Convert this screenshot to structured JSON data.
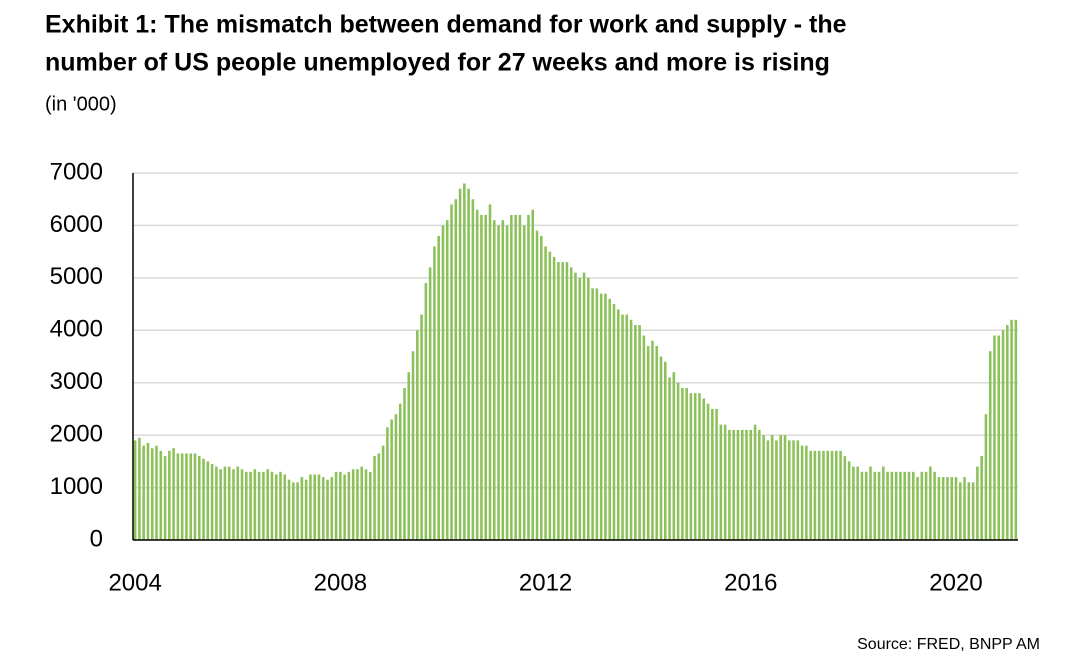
{
  "chart_data": {
    "type": "bar",
    "title": [
      "Exhibit 1: The mismatch between demand for work and supply - the",
      "number of US people unemployed for 27 weeks and more is rising"
    ],
    "subtitle": "(in '000)",
    "source": "Source: FRED,  BNPP AM",
    "color": "#8cc159",
    "grid": true,
    "ylim": [
      0,
      7000
    ],
    "yticks": [
      0,
      1000,
      2000,
      3000,
      4000,
      5000,
      6000,
      7000
    ],
    "categories": [
      "2004",
      null,
      null,
      null,
      null,
      null,
      null,
      null,
      null,
      null,
      null,
      null,
      null,
      null,
      null,
      null,
      null,
      null,
      null,
      null,
      null,
      null,
      null,
      null,
      null,
      null,
      null,
      null,
      null,
      null,
      null,
      null,
      null,
      null,
      null,
      null,
      null,
      null,
      null,
      null,
      null,
      null,
      null,
      null,
      null,
      null,
      null,
      null,
      "2008",
      null,
      null,
      null,
      null,
      null,
      null,
      null,
      null,
      null,
      null,
      null,
      null,
      null,
      null,
      null,
      null,
      null,
      null,
      null,
      null,
      null,
      null,
      null,
      null,
      null,
      null,
      null,
      null,
      null,
      null,
      null,
      null,
      null,
      null,
      null,
      null,
      null,
      null,
      null,
      null,
      null,
      null,
      null,
      null,
      null,
      null,
      null,
      "2012",
      null,
      null,
      null,
      null,
      null,
      null,
      null,
      null,
      null,
      null,
      null,
      null,
      null,
      null,
      null,
      null,
      null,
      null,
      null,
      null,
      null,
      null,
      null,
      null,
      null,
      null,
      null,
      null,
      null,
      null,
      null,
      null,
      null,
      null,
      null,
      null,
      null,
      null,
      null,
      null,
      null,
      null,
      null,
      null,
      null,
      null,
      null,
      "2016",
      null,
      null,
      null,
      null,
      null,
      null,
      null,
      null,
      null,
      null,
      null,
      null,
      null,
      null,
      null,
      null,
      null,
      null,
      null,
      null,
      null,
      null,
      null,
      null,
      null,
      null,
      null,
      null,
      null,
      null,
      null,
      null,
      null,
      null,
      null,
      null,
      null,
      null,
      null,
      null,
      null,
      null,
      null,
      null,
      null,
      null,
      null,
      "2020",
      null,
      null,
      null,
      null,
      null,
      null,
      null,
      null,
      null,
      null,
      null,
      null,
      null,
      null
    ],
    "values": [
      1900,
      1950,
      1800,
      1850,
      1750,
      1800,
      1700,
      1600,
      1700,
      1750,
      1650,
      1650,
      1650,
      1650,
      1650,
      1600,
      1550,
      1500,
      1450,
      1400,
      1350,
      1400,
      1400,
      1350,
      1400,
      1350,
      1300,
      1300,
      1350,
      1300,
      1300,
      1350,
      1300,
      1250,
      1300,
      1250,
      1150,
      1100,
      1100,
      1200,
      1150,
      1250,
      1250,
      1250,
      1200,
      1150,
      1200,
      1300,
      1300,
      1250,
      1300,
      1350,
      1350,
      1400,
      1350,
      1300,
      1600,
      1650,
      1800,
      2150,
      2300,
      2400,
      2600,
      2900,
      3200,
      3600,
      4000,
      4300,
      4900,
      5200,
      5600,
      5800,
      6000,
      6100,
      6400,
      6500,
      6700,
      6800,
      6700,
      6500,
      6300,
      6200,
      6200,
      6400,
      6100,
      6000,
      6100,
      6000,
      6200,
      6200,
      6200,
      6000,
      6200,
      6300,
      5900,
      5800,
      5600,
      5500,
      5400,
      5300,
      5300,
      5300,
      5200,
      5100,
      5000,
      5100,
      5000,
      4800,
      4800,
      4700,
      4700,
      4600,
      4500,
      4400,
      4300,
      4300,
      4200,
      4100,
      4100,
      3900,
      3700,
      3800,
      3700,
      3500,
      3400,
      3100,
      3200,
      3000,
      2900,
      2900,
      2800,
      2800,
      2800,
      2700,
      2600,
      2500,
      2500,
      2200,
      2200,
      2100,
      2100,
      2100,
      2100,
      2100,
      2100,
      2200,
      2100,
      2000,
      1900,
      2000,
      1900,
      2000,
      2000,
      1900,
      1900,
      1900,
      1800,
      1800,
      1700,
      1700,
      1700,
      1700,
      1700,
      1700,
      1700,
      1700,
      1600,
      1500,
      1400,
      1400,
      1300,
      1300,
      1400,
      1300,
      1300,
      1400,
      1300,
      1300,
      1300,
      1300,
      1300,
      1300,
      1300,
      1200,
      1300,
      1300,
      1400,
      1300,
      1200,
      1200,
      1200,
      1200,
      1200,
      1100,
      1200,
      1100,
      1100,
      1400,
      1600,
      2400,
      3600,
      3900,
      3900,
      4000,
      4100,
      4200,
      4200
    ]
  }
}
